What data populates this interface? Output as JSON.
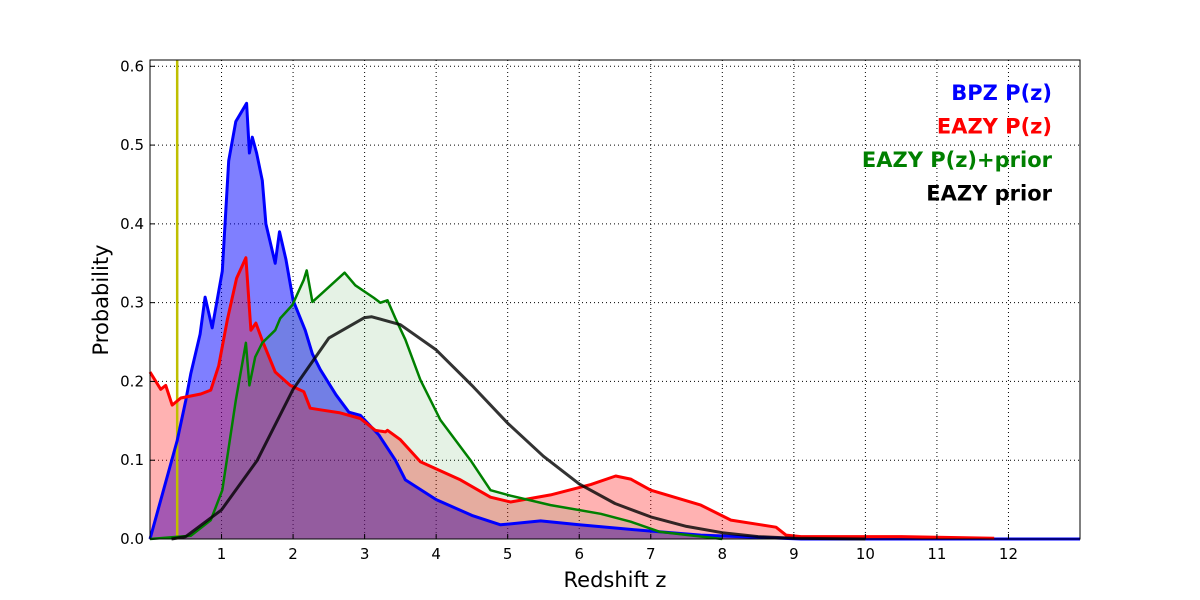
{
  "chart_data": {
    "type": "area",
    "title": "",
    "xlabel": "Redshift z",
    "ylabel": "Probability",
    "xlim": [
      0,
      13
    ],
    "ylim": [
      0,
      0.608
    ],
    "xticks": [
      1,
      2,
      3,
      4,
      5,
      6,
      7,
      8,
      9,
      10,
      11,
      12
    ],
    "yticks": [
      0.0,
      0.1,
      0.2,
      0.3,
      0.4,
      0.5,
      0.6
    ],
    "ytick_labels": [
      "0.0",
      "0.1",
      "0.2",
      "0.3",
      "0.4",
      "0.5",
      "0.6"
    ],
    "grid": true,
    "legend_position": "top-right",
    "vertical_line": {
      "x": 0.38,
      "color": "#bfbf00"
    },
    "series": [
      {
        "name": "BPZ P(z)",
        "color": "#0000ff",
        "fill": "rgba(0,0,255,0.5)",
        "width": 3,
        "points": [
          [
            0,
            0
          ],
          [
            0.38,
            0.125
          ],
          [
            0.5,
            0.176
          ],
          [
            0.57,
            0.21
          ],
          [
            0.7,
            0.26
          ],
          [
            0.77,
            0.307
          ],
          [
            0.87,
            0.268
          ],
          [
            1.01,
            0.34
          ],
          [
            1.1,
            0.48
          ],
          [
            1.2,
            0.53
          ],
          [
            1.35,
            0.553
          ],
          [
            1.39,
            0.49
          ],
          [
            1.43,
            0.51
          ],
          [
            1.49,
            0.49
          ],
          [
            1.57,
            0.455
          ],
          [
            1.62,
            0.4
          ],
          [
            1.75,
            0.35
          ],
          [
            1.81,
            0.39
          ],
          [
            1.9,
            0.355
          ],
          [
            2.0,
            0.303
          ],
          [
            2.17,
            0.265
          ],
          [
            2.27,
            0.235
          ],
          [
            2.38,
            0.215
          ],
          [
            2.6,
            0.183
          ],
          [
            2.78,
            0.161
          ],
          [
            2.94,
            0.157
          ],
          [
            3.2,
            0.132
          ],
          [
            3.43,
            0.1
          ],
          [
            3.57,
            0.075
          ],
          [
            4.0,
            0.05
          ],
          [
            4.5,
            0.03
          ],
          [
            4.9,
            0.018
          ],
          [
            5.46,
            0.023
          ],
          [
            6.0,
            0.018
          ],
          [
            6.86,
            0.011
          ],
          [
            7.7,
            0.005
          ],
          [
            9.1,
            0
          ],
          [
            13,
            0
          ]
        ]
      },
      {
        "name": "EAZY P(z)",
        "color": "#ff0000",
        "fill": "rgba(255,0,0,0.3)",
        "width": 3,
        "points": [
          [
            0,
            0.212
          ],
          [
            0.15,
            0.19
          ],
          [
            0.22,
            0.195
          ],
          [
            0.31,
            0.17
          ],
          [
            0.43,
            0.179
          ],
          [
            0.71,
            0.184
          ],
          [
            0.85,
            0.189
          ],
          [
            0.96,
            0.22
          ],
          [
            1.08,
            0.278
          ],
          [
            1.21,
            0.331
          ],
          [
            1.34,
            0.357
          ],
          [
            1.41,
            0.265
          ],
          [
            1.48,
            0.274
          ],
          [
            1.57,
            0.252
          ],
          [
            1.75,
            0.212
          ],
          [
            1.96,
            0.195
          ],
          [
            2.15,
            0.187
          ],
          [
            2.24,
            0.166
          ],
          [
            2.38,
            0.164
          ],
          [
            2.66,
            0.16
          ],
          [
            2.94,
            0.153
          ],
          [
            3.15,
            0.138
          ],
          [
            3.29,
            0.136
          ],
          [
            3.32,
            0.138
          ],
          [
            3.5,
            0.126
          ],
          [
            3.78,
            0.098
          ],
          [
            4.34,
            0.075
          ],
          [
            4.76,
            0.053
          ],
          [
            5.04,
            0.047
          ],
          [
            5.6,
            0.056
          ],
          [
            6.16,
            0.069
          ],
          [
            6.51,
            0.08
          ],
          [
            6.72,
            0.076
          ],
          [
            7.0,
            0.062
          ],
          [
            7.7,
            0.043
          ],
          [
            8.12,
            0.024
          ],
          [
            8.54,
            0.018
          ],
          [
            8.75,
            0.015
          ],
          [
            8.89,
            0.005
          ],
          [
            9.1,
            0.003
          ],
          [
            10.5,
            0.003
          ],
          [
            11.8,
            0.001
          ]
        ]
      },
      {
        "name": "EAZY P(z)+prior",
        "color": "#008000",
        "fill": "rgba(0,128,0,0.1)",
        "width": 2.5,
        "points": [
          [
            0,
            0
          ],
          [
            0.57,
            0.004
          ],
          [
            0.85,
            0.024
          ],
          [
            1.01,
            0.062
          ],
          [
            1.2,
            0.176
          ],
          [
            1.34,
            0.249
          ],
          [
            1.39,
            0.195
          ],
          [
            1.47,
            0.231
          ],
          [
            1.57,
            0.249
          ],
          [
            1.75,
            0.265
          ],
          [
            1.82,
            0.28
          ],
          [
            1.99,
            0.297
          ],
          [
            2.15,
            0.329
          ],
          [
            2.19,
            0.341
          ],
          [
            2.27,
            0.301
          ],
          [
            2.38,
            0.31
          ],
          [
            2.72,
            0.338
          ],
          [
            2.87,
            0.322
          ],
          [
            3.13,
            0.306
          ],
          [
            3.22,
            0.3
          ],
          [
            3.32,
            0.303
          ],
          [
            3.43,
            0.28
          ],
          [
            3.57,
            0.253
          ],
          [
            3.78,
            0.202
          ],
          [
            4.06,
            0.151
          ],
          [
            4.48,
            0.1
          ],
          [
            4.76,
            0.062
          ],
          [
            5.04,
            0.055
          ],
          [
            5.6,
            0.043
          ],
          [
            6.3,
            0.032
          ],
          [
            6.72,
            0.022
          ],
          [
            7.13,
            0.009
          ],
          [
            8.0,
            0
          ]
        ]
      },
      {
        "name": "EAZY prior",
        "color": "#000000",
        "fill": "none",
        "width": 3,
        "points": [
          [
            0.3,
            0
          ],
          [
            0.5,
            0.003
          ],
          [
            1,
            0.037
          ],
          [
            1.5,
            0.1
          ],
          [
            2,
            0.19
          ],
          [
            2.5,
            0.255
          ],
          [
            3,
            0.281
          ],
          [
            3.1,
            0.282
          ],
          [
            3.5,
            0.272
          ],
          [
            4,
            0.24
          ],
          [
            4.5,
            0.195
          ],
          [
            5,
            0.147
          ],
          [
            5.5,
            0.105
          ],
          [
            6,
            0.07
          ],
          [
            6.5,
            0.045
          ],
          [
            7,
            0.028
          ],
          [
            7.5,
            0.016
          ],
          [
            8,
            0.008
          ],
          [
            8.5,
            0.003
          ],
          [
            9,
            0.001
          ],
          [
            10,
            0
          ]
        ]
      }
    ]
  }
}
